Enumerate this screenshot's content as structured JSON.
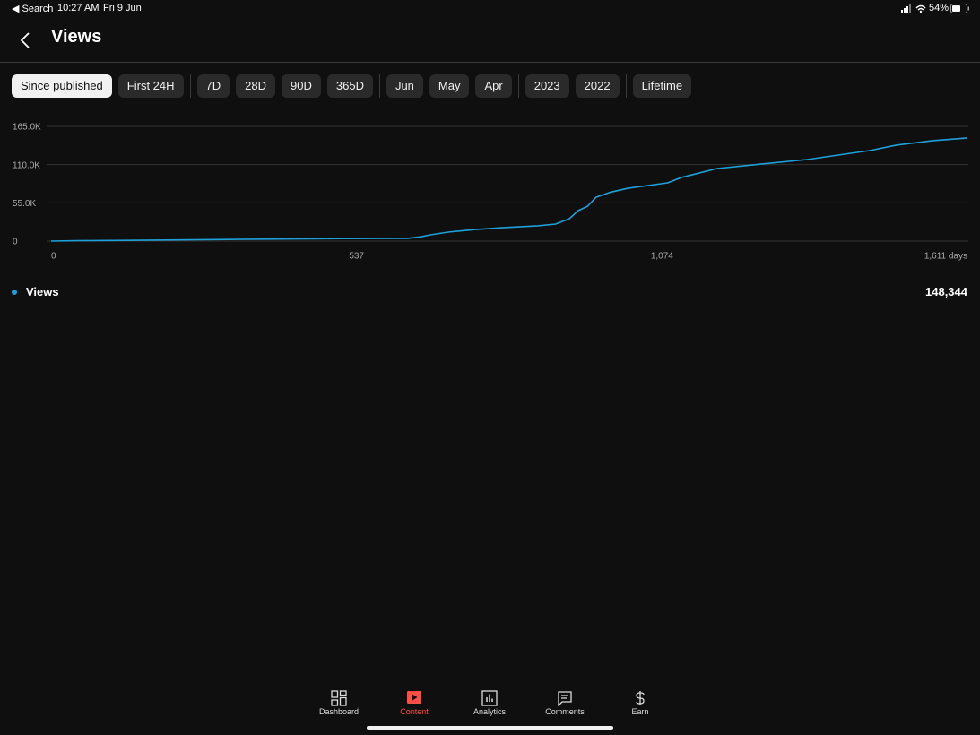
{
  "status_bar": {
    "back": "◀ Search",
    "time": "10:27 AM",
    "date": "Fri 9 Jun",
    "battery": "54%"
  },
  "header": {
    "title": "Views"
  },
  "filters": [
    "Since published",
    "First 24H",
    "7D",
    "28D",
    "90D",
    "365D",
    "Jun",
    "May",
    "Apr",
    "2023",
    "2022",
    "Lifetime"
  ],
  "chart_data": {
    "type": "line",
    "x": [
      0,
      44,
      202,
      328,
      486,
      627,
      651,
      667,
      698,
      746,
      793,
      856,
      887,
      911,
      927,
      943,
      958,
      982,
      1014,
      1084,
      1108,
      1171,
      1250,
      1329,
      1439,
      1486,
      1550,
      1611
    ],
    "series": [
      {
        "name": "Views",
        "color": "#1ea1d9",
        "values": [
          0,
          500,
          1500,
          2500,
          3500,
          3900,
          6400,
          9000,
          12900,
          16700,
          19300,
          22000,
          24500,
          32000,
          44000,
          50000,
          63000,
          70000,
          76000,
          83800,
          91500,
          104400,
          110900,
          117300,
          130200,
          138000,
          144400,
          148300
        ]
      }
    ],
    "xlim": [
      0,
      1611
    ],
    "xticks": [
      0,
      537,
      {
        "value": 1074,
        "label": "1,074"
      },
      {
        "value": 1611,
        "label": "1,611 days"
      }
    ],
    "ylim": [
      0,
      165000
    ],
    "yticks": [
      0,
      {
        "value": 55000,
        "label": "55.0K"
      },
      {
        "value": 110000,
        "label": "110.0K"
      },
      {
        "value": 165000,
        "label": "165.0K"
      }
    ],
    "grid": true
  },
  "legend_total": "148,344",
  "tabs": [
    "Dashboard",
    "Content",
    "Analytics",
    "Comments",
    "Earn"
  ]
}
